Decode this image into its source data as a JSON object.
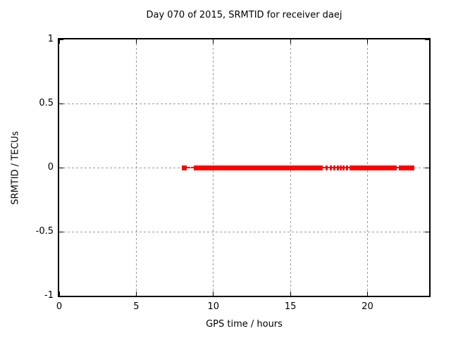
{
  "title": "Day 070 of 2015, SRMTID for receiver daej",
  "colors": {
    "series_red": "#ff0000",
    "grid_gray": "#9a9a9a",
    "border_black": "#000000",
    "background": "#ffffff"
  },
  "chart_data": {
    "type": "scatter",
    "title": "Day 070 of 2015, SRMTID for receiver daej",
    "xlabel": "GPS time / hours",
    "ylabel": "SRMTID / TECUs",
    "xlim": [
      0,
      24
    ],
    "ylim": [
      -1,
      1
    ],
    "grid": true,
    "legend": "none",
    "xticks": [
      {
        "v": 0,
        "label": "0"
      },
      {
        "v": 5,
        "label": "5"
      },
      {
        "v": 10,
        "label": "10"
      },
      {
        "v": 15,
        "label": "15"
      },
      {
        "v": 20,
        "label": "20"
      }
    ],
    "yticks": [
      {
        "v": 1,
        "label": "1"
      },
      {
        "v": 0.5,
        "label": "0.5"
      },
      {
        "v": 0,
        "label": "0"
      },
      {
        "v": -0.5,
        "label": "-0.5"
      },
      {
        "v": -1,
        "label": "-1"
      }
    ],
    "series": [
      {
        "name": "SRMTID",
        "marker": "filled-square",
        "color": "#ff0000",
        "y_value": 0,
        "dense_segments_x_hours": [
          [
            7.95,
            8.28
          ],
          [
            8.73,
            17.1
          ],
          [
            18.83,
            21.9
          ],
          [
            22.03,
            23.04
          ]
        ],
        "sparse_points_x_hours": [
          [
            17.28,
            17.42
          ],
          [
            17.56,
            17.69
          ],
          [
            17.78,
            17.92
          ],
          [
            18.01,
            18.13
          ],
          [
            18.19,
            18.31
          ],
          [
            18.38,
            18.51
          ],
          [
            18.6,
            18.72
          ]
        ],
        "connector_segments_x_hours": [
          [
            8.28,
            8.5
          ],
          [
            8.56,
            8.73
          ],
          [
            17.1,
            18.83
          ],
          [
            21.9,
            22.03
          ]
        ]
      }
    ]
  }
}
